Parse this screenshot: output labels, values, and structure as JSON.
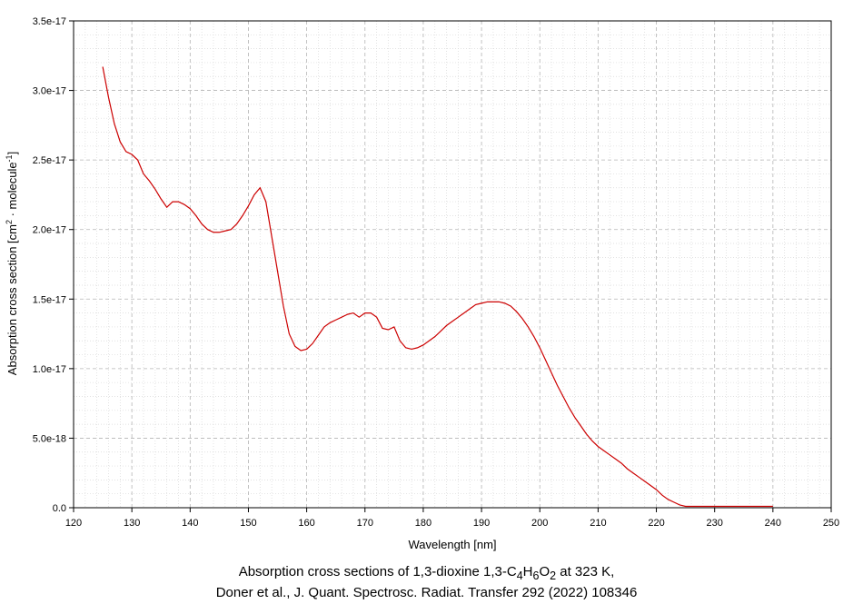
{
  "chart_data": {
    "type": "line",
    "xlabel": "Wavelength [nm]",
    "ylabel": {
      "prefix": "Absorption cross section [cm",
      "exp1": "2",
      "middle": " · molecule",
      "exp2": "-1",
      "suffix": "]"
    },
    "xlim": [
      120,
      250
    ],
    "ylim": [
      0,
      3.5e-17
    ],
    "x_ticks": [
      120,
      130,
      140,
      150,
      160,
      170,
      180,
      190,
      200,
      210,
      220,
      230,
      240,
      250
    ],
    "y_ticks": [
      {
        "value": 0,
        "label": "0.0"
      },
      {
        "value": 5e-18,
        "label": "5.0e-18"
      },
      {
        "value": 1e-17,
        "label": "1.0e-17"
      },
      {
        "value": 1.5e-17,
        "label": "1.5e-17"
      },
      {
        "value": 2e-17,
        "label": "2.0e-17"
      },
      {
        "value": 2.5e-17,
        "label": "2.5e-17"
      },
      {
        "value": 3e-17,
        "label": "3.0e-17"
      },
      {
        "value": 3.5e-17,
        "label": "3.5e-17"
      }
    ],
    "grid": true,
    "line_color": "#cc0000",
    "series": [
      {
        "x": [
          125,
          126,
          127,
          128,
          129,
          130,
          131,
          132,
          133,
          134,
          135,
          136,
          137,
          138,
          139,
          140,
          141,
          142,
          143,
          144,
          145,
          146,
          147,
          148,
          149,
          150,
          151,
          152,
          153,
          154,
          155,
          156,
          157,
          158,
          159,
          160,
          161,
          162,
          163,
          164,
          165,
          166,
          167,
          168,
          169,
          170,
          171,
          172,
          173,
          174,
          175,
          176,
          177,
          178,
          179,
          180,
          181,
          182,
          183,
          184,
          185,
          186,
          187,
          188,
          189,
          190,
          191,
          192,
          193,
          194,
          195,
          196,
          197,
          198,
          199,
          200,
          201,
          202,
          203,
          204,
          205,
          206,
          207,
          208,
          209,
          210,
          211,
          212,
          213,
          214,
          215,
          216,
          217,
          218,
          219,
          220,
          221,
          222,
          223,
          224,
          225,
          226,
          227,
          228,
          229,
          230,
          232,
          234,
          236,
          238,
          240
        ],
        "y": [
          3.17e-17,
          2.95e-17,
          2.76e-17,
          2.63e-17,
          2.56e-17,
          2.54e-17,
          2.5e-17,
          2.4e-17,
          2.35e-17,
          2.29e-17,
          2.22e-17,
          2.16e-17,
          2.2e-17,
          2.2e-17,
          2.18e-17,
          2.15e-17,
          2.1e-17,
          2.04e-17,
          2e-17,
          1.98e-17,
          1.98e-17,
          1.99e-17,
          2e-17,
          2.04e-17,
          2.1e-17,
          2.17e-17,
          2.25e-17,
          2.3e-17,
          2.2e-17,
          1.95e-17,
          1.7e-17,
          1.45e-17,
          1.25e-17,
          1.16e-17,
          1.13e-17,
          1.14e-17,
          1.18e-17,
          1.24e-17,
          1.3e-17,
          1.33e-17,
          1.35e-17,
          1.37e-17,
          1.39e-17,
          1.4e-17,
          1.37e-17,
          1.4e-17,
          1.4e-17,
          1.37e-17,
          1.29e-17,
          1.28e-17,
          1.3e-17,
          1.2e-17,
          1.15e-17,
          1.14e-17,
          1.15e-17,
          1.17e-17,
          1.2e-17,
          1.23e-17,
          1.27e-17,
          1.31e-17,
          1.34e-17,
          1.37e-17,
          1.4e-17,
          1.43e-17,
          1.46e-17,
          1.47e-17,
          1.48e-17,
          1.48e-17,
          1.48e-17,
          1.47e-17,
          1.45e-17,
          1.41e-17,
          1.36e-17,
          1.3e-17,
          1.23e-17,
          1.15e-17,
          1.06e-17,
          9.7e-18,
          8.8e-18,
          8e-18,
          7.2e-18,
          6.5e-18,
          5.9e-18,
          5.3e-18,
          4.8e-18,
          4.4e-18,
          4.1e-18,
          3.8e-18,
          3.5e-18,
          3.2e-18,
          2.8e-18,
          2.5e-18,
          2.2e-18,
          1.9e-18,
          1.6e-18,
          1.3e-18,
          9e-19,
          6e-19,
          4e-19,
          2e-19,
          1e-19,
          1e-19,
          1e-19,
          1e-19,
          1e-19,
          1e-19,
          1e-19,
          1e-19,
          1e-19,
          1e-19,
          1e-19
        ]
      }
    ]
  },
  "caption": {
    "line1": {
      "prefix": "Absorption cross sections of 1,3-dioxine 1,3-C",
      "s1": "4",
      "h": "H",
      "s2": "6",
      "o": "O",
      "s3": "2",
      "suffix": " at 323 K,"
    },
    "line2": "Doner et al., J. Quant. Spectrosc. Radiat. Transfer 292 (2022) 108346"
  }
}
